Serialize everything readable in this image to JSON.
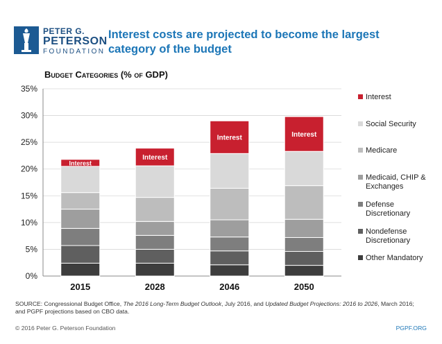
{
  "logo": {
    "line1": "PETER G.",
    "line2": "PETERSON",
    "line3": "FOUNDATION",
    "icon": "torch-icon",
    "color": "#1c5a93"
  },
  "headline": "Interest costs are projected to become the largest category of the budget",
  "source_parts": {
    "prefix": "SOURCE: Congressional Budget Office, ",
    "title1": "The 2016 Long-Term Budget Outlook",
    "mid": ", July 2016, and ",
    "title2": "Updated Budget Projections: 2016 to 2026",
    "suffix": ", March 2016; and PGPF projections based on CBO data."
  },
  "footer": {
    "copyright": "© 2016 Peter G. Peterson Foundation",
    "site": "PGPF.ORG"
  },
  "chart_data": {
    "type": "bar",
    "stacked": true,
    "title": "Budget Categories (% of GDP)",
    "categories": [
      "2015",
      "2028",
      "2046",
      "2050"
    ],
    "y_ticks": [
      "0%",
      "5%",
      "10%",
      "15%",
      "20%",
      "25%",
      "30%",
      "35%"
    ],
    "ylim": [
      0,
      35
    ],
    "grid": true,
    "legend_position": "right",
    "series": [
      {
        "name": "Other Mandatory",
        "color": "#3d3d3d",
        "values": [
          2.4,
          2.4,
          2.1,
          2.0
        ]
      },
      {
        "name": "Nondefense Discretionary",
        "color": "#5f5f5f",
        "values": [
          3.3,
          2.6,
          2.6,
          2.6
        ]
      },
      {
        "name": "Defense Discretionary",
        "color": "#7e7e7e",
        "values": [
          3.2,
          2.6,
          2.6,
          2.6
        ]
      },
      {
        "name": "Medicaid, CHIP & Exchanges",
        "color": "#9e9e9e",
        "values": [
          3.6,
          2.6,
          3.2,
          3.4
        ]
      },
      {
        "name": "Medicare",
        "color": "#bdbdbd",
        "values": [
          3.1,
          4.5,
          5.9,
          6.3
        ]
      },
      {
        "name": "Social Security",
        "color": "#d9d9d9",
        "values": [
          4.9,
          5.9,
          6.5,
          6.4
        ]
      },
      {
        "name": "Interest",
        "color": "#c8202f",
        "values": [
          1.3,
          3.3,
          6.1,
          6.5
        ],
        "bar_label": "Interest"
      }
    ]
  }
}
